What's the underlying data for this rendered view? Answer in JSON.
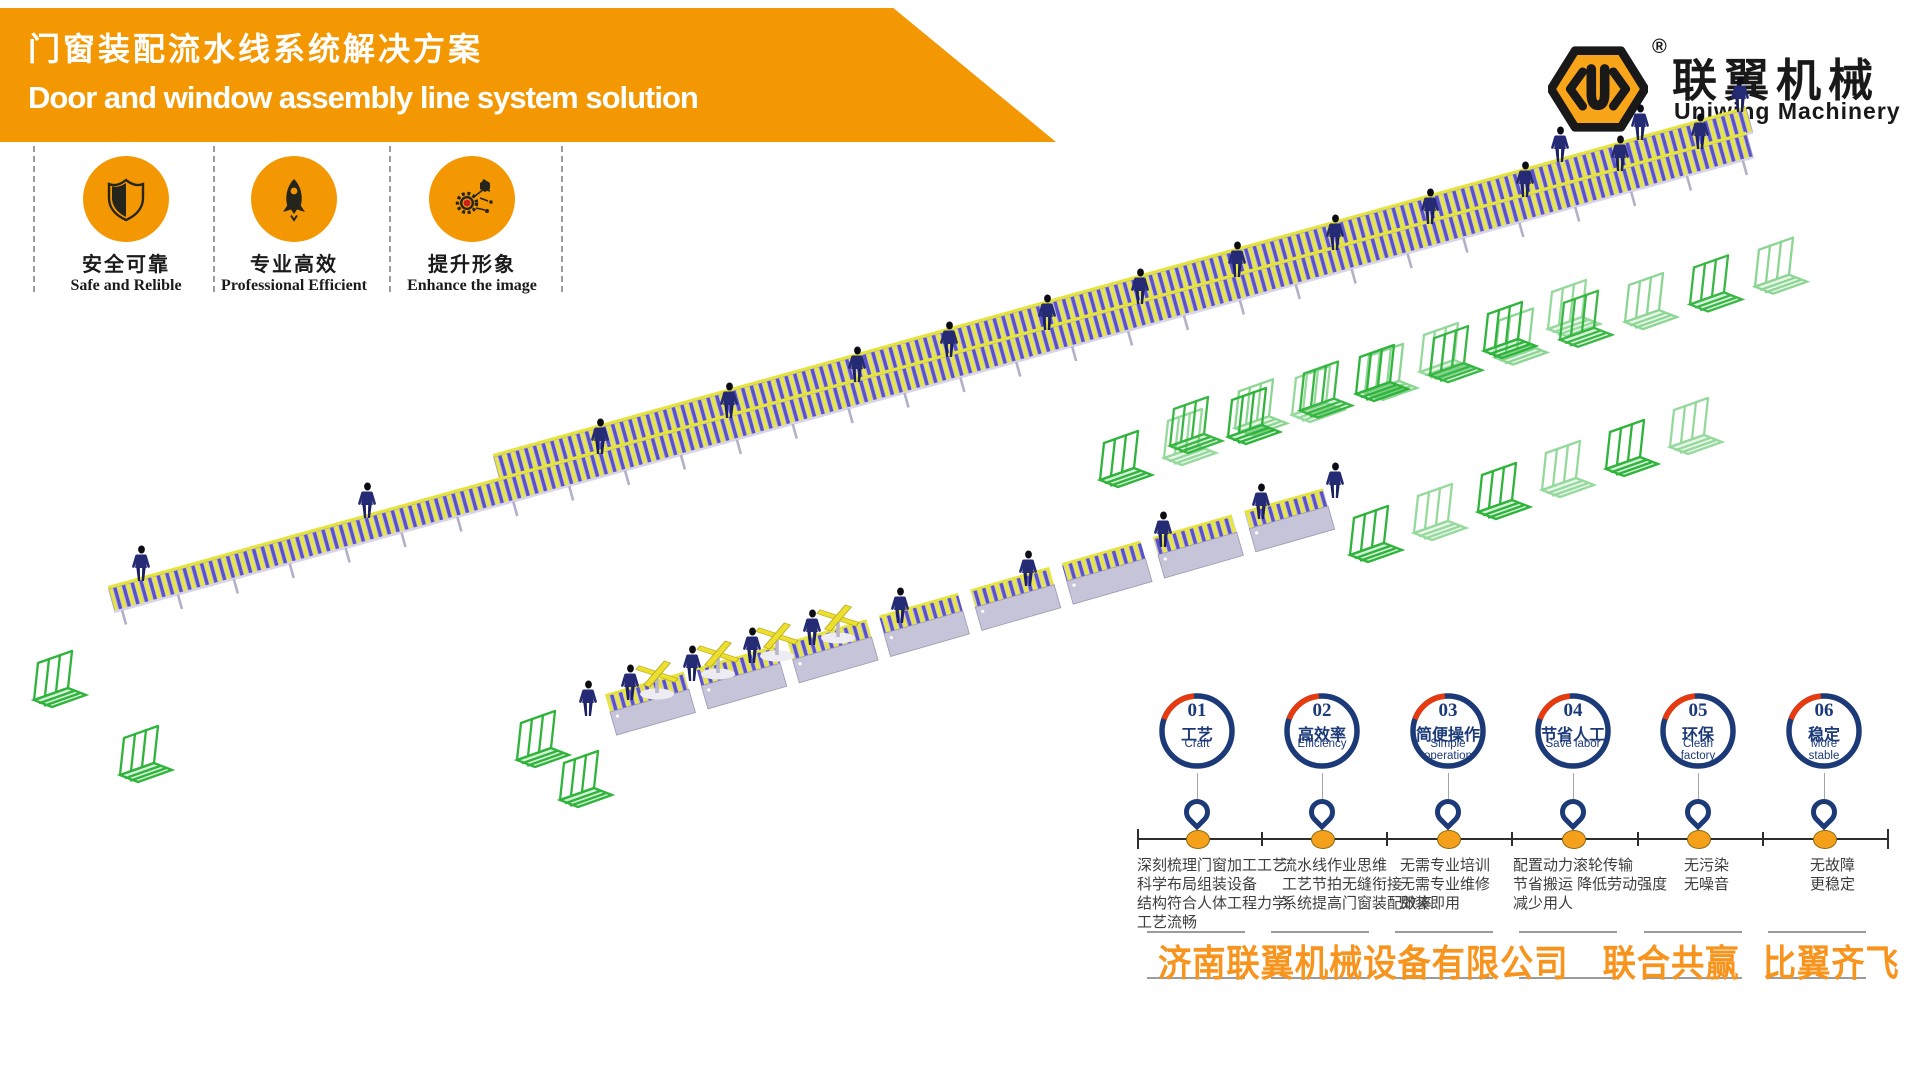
{
  "header": {
    "title_zh": "门窗装配流水线系统解决方案",
    "title_en": "Door and window assembly line system solution"
  },
  "logo": {
    "monogram": "U",
    "registered": "®",
    "name_zh": "联翼机械",
    "name_en": "Uniwing Machinery"
  },
  "features": [
    {
      "icon": "shield-icon",
      "label_zh": "安全可靠",
      "label_en": "Safe and Relible"
    },
    {
      "icon": "rocket-icon",
      "label_zh": "专业高效",
      "label_en": "Professional Efficient"
    },
    {
      "icon": "gear-network-icon",
      "label_zh": "提升形象",
      "label_en": "Enhance the image"
    }
  ],
  "benefits": [
    {
      "number": "01",
      "label_zh": "工艺",
      "label_en": "Craft",
      "desc_lines": [
        "深刻梳理门窗加工工艺",
        "科学布局组装设备",
        "结构符合人体工程力学",
        "工艺流畅"
      ]
    },
    {
      "number": "02",
      "label_zh": "高效率",
      "label_en": "Efficiency",
      "desc_lines": [
        "流水线作业思维",
        "工艺节拍无缝衔接",
        "系统提高门窗装配效率"
      ]
    },
    {
      "number": "03",
      "label_zh": "简便操作",
      "label_en": "Simple operation",
      "desc_lines": [
        "无需专业培训",
        "无需专业维修",
        "即装即用"
      ]
    },
    {
      "number": "04",
      "label_zh": "节省人工",
      "label_en": "Save labor",
      "desc_lines": [
        "配置动力滚轮传输",
        "节省搬运 降低劳动强度",
        "减少用人"
      ]
    },
    {
      "number": "05",
      "label_zh": "环保",
      "label_en": "Clean factory",
      "desc_lines": [
        "无污染",
        "无噪音"
      ]
    },
    {
      "number": "06",
      "label_zh": "稳定",
      "label_en": "More stable",
      "desc_lines": [
        "无故障",
        "更稳定"
      ]
    }
  ],
  "footer": {
    "company": "济南联翼机械设备有限公司",
    "slogan_1": "联合共赢",
    "slogan_2": "比翼齐飞"
  },
  "colors": {
    "accent_orange": "#F39803",
    "footer_orange": "#F7941D",
    "navy": "#1D3A78",
    "signal_red": "#E83A0F",
    "rack_green": "#2FB43B",
    "roller_yellow": "#E9E63B",
    "roller_purple": "#5A50C8",
    "conveyor_gray": "#C6C4D8"
  }
}
